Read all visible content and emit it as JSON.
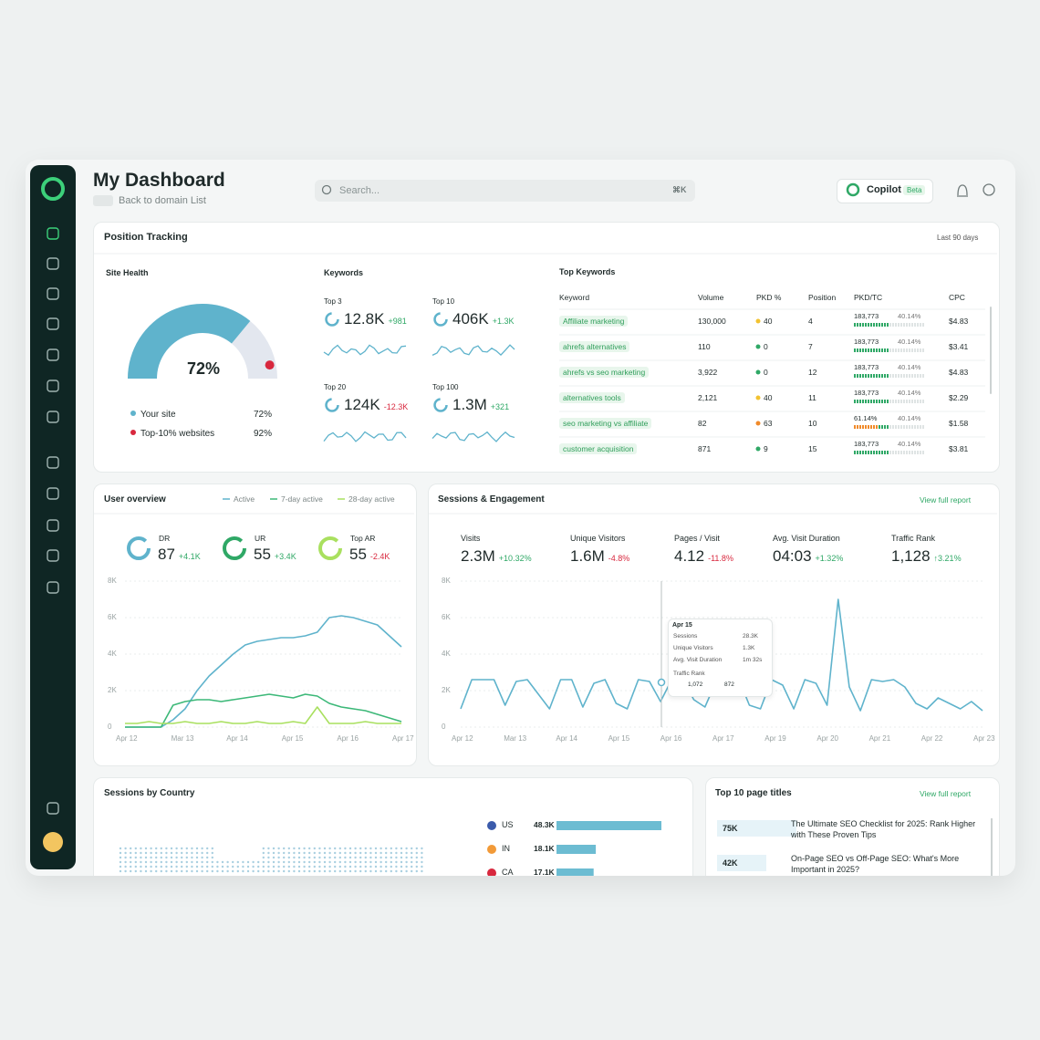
{
  "header": {
    "title": "My Dashboard",
    "back": "Back to domain List",
    "search": "Search...",
    "shortcut": "⌘K",
    "copilot": "Copilot",
    "beta": "Beta"
  },
  "position_tracking": {
    "title": "Position Tracking",
    "range": "Last 90 days",
    "site_health": {
      "title": "Site Health",
      "value": "72%",
      "legend": [
        {
          "label": "Your site",
          "value": "72%",
          "color": "#5fb3cc"
        },
        {
          "label": "Top-10% websites",
          "value": "92%",
          "color": "#d8283e"
        }
      ]
    },
    "keywords": {
      "title": "Keywords",
      "items": [
        {
          "label": "Top 3",
          "value": "12.8K",
          "change": "+981"
        },
        {
          "label": "Top 10",
          "value": "406K",
          "change": "+1.3K"
        },
        {
          "label": "Top 20",
          "value": "124K",
          "change": "-12.3K"
        },
        {
          "label": "Top 100",
          "value": "1.3M",
          "change": "+321"
        }
      ]
    },
    "top_keywords": {
      "title": "Top Keywords",
      "columns": [
        "Keyword",
        "Volume",
        "PKD %",
        "Position",
        "PKD/TC",
        "CPC"
      ],
      "rows": [
        {
          "keyword": "Affiliate marketing",
          "volume": "130,000",
          "pkd": "40",
          "pkd_color": "#f2c230",
          "position": "4",
          "pkd_tc": "183,773",
          "tc": "40.14%",
          "cpc": "$4.83"
        },
        {
          "keyword": "ahrefs alternatives",
          "volume": "110",
          "pkd": "0",
          "pkd_color": "#2fa866",
          "position": "7",
          "pkd_tc": "183,773",
          "tc": "40.14%",
          "cpc": "$3.41"
        },
        {
          "keyword": "ahrefs vs seo marketing",
          "volume": "3,922",
          "pkd": "0",
          "pkd_color": "#2fa866",
          "position": "12",
          "pkd_tc": "183,773",
          "tc": "40.14%",
          "cpc": "$4.83"
        },
        {
          "keyword": "alternatives tools",
          "volume": "2,121",
          "pkd": "40",
          "pkd_color": "#f2c230",
          "position": "11",
          "pkd_tc": "183,773",
          "tc": "40.14%",
          "cpc": "$2.29"
        },
        {
          "keyword": "seo marketing vs affiliate",
          "volume": "82",
          "pkd": "63",
          "pkd_color": "#f08a2a",
          "position": "10",
          "pkd_tc": "61.14%",
          "tc": "40.14%",
          "cpc": "$1.58"
        },
        {
          "keyword": "customer acquisition",
          "volume": "871",
          "pkd": "9",
          "pkd_color": "#2fa866",
          "position": "15",
          "pkd_tc": "183,773",
          "tc": "40.14%",
          "cpc": "$3.81"
        }
      ]
    }
  },
  "user_overview": {
    "title": "User overview",
    "metrics": [
      {
        "label": "DR",
        "value": "87",
        "change": "+4.1K",
        "color": "#5fb3cc"
      },
      {
        "label": "UR",
        "value": "55",
        "change": "+3.4K",
        "color": "#2fa866"
      },
      {
        "label": "Top AR",
        "value": "55",
        "change": "-2.4K",
        "color": "#a9e05f"
      }
    ],
    "chart": {
      "type": "line",
      "ylim": [
        0,
        8000
      ],
      "yticks": [
        0,
        {
          "value": 2000,
          "label": "2K"
        },
        {
          "value": 4000,
          "label": "4K"
        },
        {
          "value": 6000,
          "label": "6K"
        },
        {
          "value": 8000,
          "label": "8K"
        }
      ],
      "xlabels": [
        "Apr 12",
        "Mar 13",
        "Apr 14",
        "Apr 15",
        "Apr 16",
        "Apr 17"
      ],
      "series": [
        {
          "name": "Active",
          "color": "#5fb3cc",
          "values": [
            0,
            0,
            0,
            0,
            400,
            1000,
            2000,
            2800,
            3400,
            4000,
            4500,
            4700,
            4800,
            4900,
            4900,
            5000,
            5200,
            6000,
            6100,
            6000,
            5800,
            5600,
            5000,
            4400
          ]
        },
        {
          "name": "7-day active",
          "color": "#3cb878",
          "values": [
            0,
            0,
            0,
            0,
            1200,
            1400,
            1500,
            1500,
            1400,
            1500,
            1600,
            1700,
            1800,
            1700,
            1600,
            1800,
            1700,
            1300,
            1100,
            1000,
            900,
            700,
            500,
            300
          ]
        },
        {
          "name": "28-day active",
          "color": "#a9e05f",
          "values": [
            200,
            200,
            300,
            200,
            200,
            300,
            200,
            200,
            300,
            200,
            200,
            300,
            200,
            200,
            300,
            200,
            1100,
            200,
            200,
            200,
            300,
            200,
            200,
            200
          ]
        }
      ]
    }
  },
  "sessions": {
    "title": "Sessions & Engagement",
    "link": "View full report",
    "metrics": [
      {
        "label": "Visits",
        "value": "2.3M",
        "change": "+10.32%"
      },
      {
        "label": "Unique Visitors",
        "value": "1.6M",
        "change": "-4.8%"
      },
      {
        "label": "Pages / Visit",
        "value": "4.12",
        "change": "-11.8%"
      },
      {
        "label": "Avg. Visit Duration",
        "value": "04:03",
        "change": "+1.32%"
      },
      {
        "label": "Traffic Rank",
        "value": "1,128",
        "change": "↑3.21%"
      }
    ],
    "chart": {
      "type": "line",
      "ylim": [
        0,
        8000
      ],
      "yticks": [
        0,
        {
          "value": 2000,
          "label": "2K"
        },
        {
          "value": 4000,
          "label": "4K"
        },
        {
          "value": 6000,
          "label": "6K"
        },
        {
          "value": 8000,
          "label": "8K"
        }
      ],
      "xlabels": [
        "Apr 12",
        "Mar 13",
        "Apr 14",
        "Apr 15",
        "Apr 16",
        "Apr 17",
        "Apr 19",
        "Apr 20",
        "Apr 21",
        "Apr 22",
        "Apr 23"
      ],
      "series": [
        {
          "color": "#5fb3cc",
          "values": [
            1000,
            2600,
            2600,
            2600,
            1200,
            2500,
            2600,
            1800,
            1000,
            2600,
            2600,
            1100,
            2400,
            2600,
            1300,
            1000,
            2600,
            2500,
            1400,
            2600,
            2600,
            1500,
            1100,
            2500,
            2600,
            2700,
            1200,
            1000,
            2600,
            2300,
            1000,
            2600,
            2400,
            1200,
            7000,
            2200,
            900,
            2600,
            2500,
            2600,
            2200,
            1300,
            1000,
            1600,
            1300,
            1000,
            1400,
            900
          ]
        }
      ]
    },
    "tooltip": {
      "date": "Apr 15",
      "rows": [
        {
          "label": "Sessions",
          "value": "28.3K"
        },
        {
          "label": "Unique Visitors",
          "value": "1.3K"
        },
        {
          "label": "Avg. Visit Duration",
          "value": "1m 32s"
        }
      ],
      "rank_label": "Traffic Rank",
      "rank_a": "1,072",
      "rank_b": "872"
    }
  },
  "countries": {
    "title": "Sessions by Country",
    "rows": [
      {
        "code": "US",
        "value": "48.3K"
      },
      {
        "code": "IN",
        "value": "18.1K"
      },
      {
        "code": "CA",
        "value": "17.1K"
      }
    ]
  },
  "top_pages": {
    "title": "Top 10 page titles",
    "link": "View full report",
    "rows": [
      {
        "value": "75K",
        "title": "The Ultimate SEO Checklist for 2025: Rank Higher with These Proven Tips"
      },
      {
        "value": "42K",
        "title": "On-Page SEO vs Off-Page SEO: What's More Important in 2025?"
      }
    ]
  }
}
